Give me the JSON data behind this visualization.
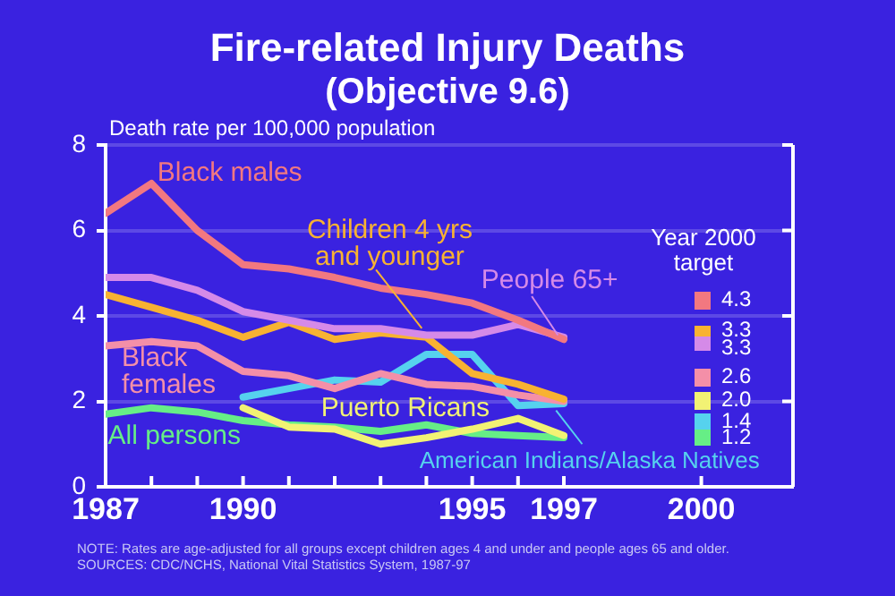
{
  "chart_data": {
    "type": "line",
    "title": "Fire-related Injury Deaths",
    "subtitle": "(Objective 9.6)",
    "ylabel": "Death rate per 100,000 population",
    "x": [
      1987,
      1988,
      1989,
      1990,
      1991,
      1992,
      1993,
      1994,
      1995,
      1996,
      1997
    ],
    "series": [
      {
        "name": "Black males",
        "color": "#f27880",
        "values": [
          6.4,
          7.1,
          6.0,
          5.2,
          5.1,
          4.9,
          4.65,
          4.5,
          4.3,
          3.9,
          3.45
        ]
      },
      {
        "name": "People 65+",
        "color": "#d58ae8",
        "values": [
          4.9,
          4.9,
          4.6,
          4.1,
          3.9,
          3.7,
          3.7,
          3.55,
          3.55,
          3.8,
          3.5
        ]
      },
      {
        "name": "Children 4 yrs and younger",
        "color": "#f8b232",
        "values": [
          4.5,
          4.2,
          3.9,
          3.5,
          3.85,
          3.45,
          3.6,
          3.5,
          2.65,
          2.4,
          2.05
        ]
      },
      {
        "name": "Black females",
        "color": "#f48fa8",
        "values": [
          3.3,
          3.4,
          3.3,
          2.7,
          2.6,
          2.3,
          2.65,
          2.4,
          2.35,
          2.15,
          2.0
        ]
      },
      {
        "name": "American Indians/Alaska Natives",
        "color": "#56d2ee",
        "values": [
          null,
          null,
          null,
          2.1,
          2.3,
          2.5,
          2.45,
          3.1,
          3.1,
          1.9,
          1.95
        ]
      },
      {
        "name": "Puerto Ricans",
        "color": "#f2f274",
        "values": [
          null,
          null,
          null,
          1.85,
          1.4,
          1.35,
          1.0,
          1.15,
          1.35,
          1.6,
          1.2
        ]
      },
      {
        "name": "All persons",
        "color": "#66ee86",
        "values": [
          1.7,
          1.85,
          1.75,
          1.55,
          1.45,
          1.4,
          1.3,
          1.45,
          1.25,
          1.2,
          1.15
        ]
      }
    ],
    "xlim": [
      1987,
      2002
    ],
    "xticks": [
      1987,
      {
        "value": 1988,
        "label": null
      },
      {
        "value": 1989,
        "label": null
      },
      1990,
      {
        "value": 1991,
        "label": null
      },
      {
        "value": 1992,
        "label": null
      },
      {
        "value": 1993,
        "label": null
      },
      {
        "value": 1994,
        "label": null
      },
      1995,
      {
        "value": 1996,
        "label": null
      },
      1997,
      2000
    ],
    "ylim": [
      0,
      8
    ],
    "yticks": [
      0,
      2,
      4,
      6,
      8
    ],
    "grid": "y",
    "legend": "right",
    "marker": "none",
    "line_style": "solid",
    "annotations": [
      "Year 2000 target",
      "4.3",
      "3.3",
      "3.3",
      "2.6",
      "2.0",
      "1.4",
      "1.2",
      "NOTE: Rates are age-adjusted for all groups except children ages 4 and under and people ages 65 and older.",
      "SOURCES: CDC/NCHS, National Vital Statistics System, 1987-97"
    ]
  }
}
